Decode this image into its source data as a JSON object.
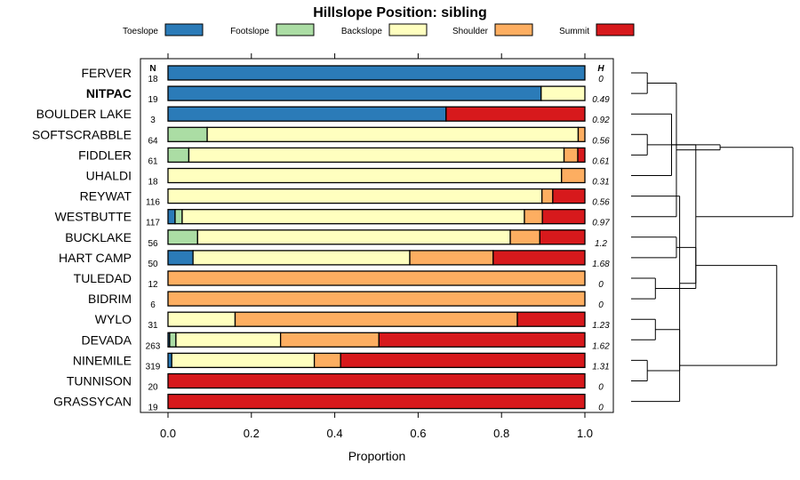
{
  "chart_data": {
    "type": "bar",
    "stacked": true,
    "orientation": "horizontal",
    "title": "Hillslope Position: sibling",
    "xlabel": "Proportion",
    "xlim": [
      0,
      1
    ],
    "xticks": [
      "0.0",
      "0.2",
      "0.4",
      "0.6",
      "0.8",
      "1.0"
    ],
    "n_header": "N",
    "h_header": "H",
    "highlight": "NITPAC",
    "legend_position": "top",
    "classes": [
      {
        "name": "Toeslope",
        "color": "#2b7bb8"
      },
      {
        "name": "Footslope",
        "color": "#abdda4"
      },
      {
        "name": "Backslope",
        "color": "#ffffbf"
      },
      {
        "name": "Shoulder",
        "color": "#fdae61"
      },
      {
        "name": "Summit",
        "color": "#d7191c"
      }
    ],
    "rows": [
      {
        "name": "FERVER",
        "n": "18",
        "h": "0",
        "values": [
          1.0,
          0,
          0,
          0,
          0
        ]
      },
      {
        "name": "NITPAC",
        "n": "19",
        "h": "0.49",
        "values": [
          0.895,
          0,
          0.105,
          0,
          0
        ]
      },
      {
        "name": "BOULDER LAKE",
        "n": "3",
        "h": "0.92",
        "values": [
          0.667,
          0,
          0,
          0,
          0.333
        ]
      },
      {
        "name": "SOFTSCRABBLE",
        "n": "64",
        "h": "0.56",
        "values": [
          0,
          0.094,
          0.89,
          0.016,
          0
        ]
      },
      {
        "name": "FIDDLER",
        "n": "61",
        "h": "0.61",
        "values": [
          0,
          0.05,
          0.9,
          0.033,
          0.017
        ]
      },
      {
        "name": "UHALDI",
        "n": "18",
        "h": "0.31",
        "values": [
          0,
          0,
          0.944,
          0.056,
          0
        ]
      },
      {
        "name": "REYWAT",
        "n": "116",
        "h": "0.56",
        "values": [
          0,
          0,
          0.897,
          0.026,
          0.077
        ]
      },
      {
        "name": "WESTBUTTE",
        "n": "117",
        "h": "0.97",
        "values": [
          0.017,
          0.017,
          0.821,
          0.043,
          0.102
        ]
      },
      {
        "name": "BUCKLAKE",
        "n": "56",
        "h": "1.2",
        "values": [
          0,
          0.071,
          0.75,
          0.071,
          0.108
        ]
      },
      {
        "name": "HART CAMP",
        "n": "50",
        "h": "1.68",
        "values": [
          0.06,
          0,
          0.52,
          0.2,
          0.22
        ]
      },
      {
        "name": "TULEDAD",
        "n": "12",
        "h": "0",
        "values": [
          0,
          0,
          0,
          1.0,
          0
        ]
      },
      {
        "name": "BIDRIM",
        "n": "6",
        "h": "0",
        "values": [
          0,
          0,
          0,
          1.0,
          0
        ]
      },
      {
        "name": "WYLO",
        "n": "31",
        "h": "1.23",
        "values": [
          0,
          0,
          0.161,
          0.677,
          0.162
        ]
      },
      {
        "name": "DEVADA",
        "n": "263",
        "h": "1.62",
        "values": [
          0.004,
          0.015,
          0.251,
          0.236,
          0.494
        ]
      },
      {
        "name": "NINEMILE",
        "n": "319",
        "h": "1.31",
        "values": [
          0.009,
          0,
          0.342,
          0.063,
          0.586
        ]
      },
      {
        "name": "TUNNISON",
        "n": "20",
        "h": "0",
        "values": [
          0,
          0,
          0,
          0,
          1.0
        ]
      },
      {
        "name": "GRASSYCAN",
        "n": "19",
        "h": "0",
        "values": [
          0,
          0,
          0,
          0,
          1.0
        ]
      }
    ],
    "dendrogram": {
      "merges": [
        [
          0,
          1,
          0.1
        ],
        [
          3,
          4,
          0.1
        ],
        [
          14,
          15,
          0.1
        ],
        [
          13,
          12,
          0.15
        ],
        [
          10,
          11,
          0.15
        ],
        [
          2,
          5,
          0.25
        ],
        [
          17,
          7,
          0.28
        ],
        [
          8,
          9,
          0.28
        ],
        [
          19,
          6,
          0.3
        ],
        [
          20,
          16,
          0.3
        ],
        [
          25,
          24,
          0.4
        ],
        [
          21,
          18,
          0.4
        ],
        [
          22,
          23,
          0.55
        ],
        [
          27,
          26,
          0.9
        ],
        [
          28,
          29,
          1.0
        ]
      ]
    }
  }
}
